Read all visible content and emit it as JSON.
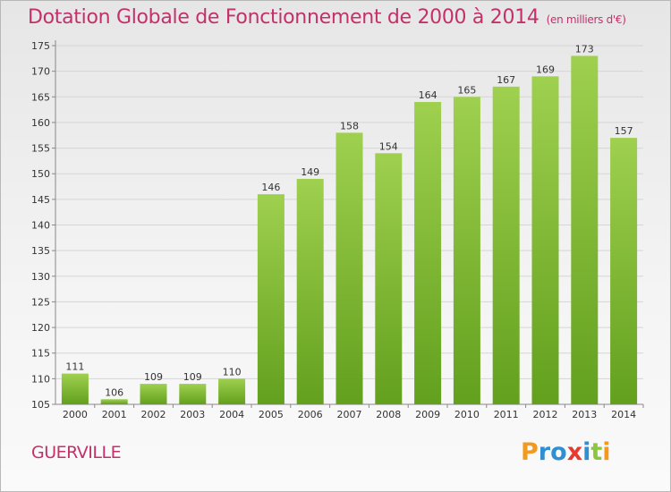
{
  "title": "Dotation Globale de Fonctionnement de 2000 à 2014",
  "subtitle": "(en milliers d'€)",
  "place": "GUERVILLE",
  "logo": {
    "letters": [
      "P",
      "r",
      "o",
      "x",
      "i",
      "t",
      "i"
    ],
    "colors": [
      "#f39a1e",
      "#2f8fd0",
      "#2f8fd0",
      "#e8392f",
      "#2f8fd0",
      "#8cc63f",
      "#f39a1e"
    ]
  },
  "colors": {
    "bar_top": "#9fd04f",
    "bar_bottom": "#62a01d",
    "accent": "#c4306a",
    "grid": "#d5d5d5"
  },
  "chart_data": {
    "type": "bar",
    "categories": [
      "2000",
      "2001",
      "2002",
      "2003",
      "2004",
      "2005",
      "2006",
      "2007",
      "2008",
      "2009",
      "2010",
      "2011",
      "2012",
      "2013",
      "2014"
    ],
    "values": [
      111,
      106,
      109,
      109,
      110,
      146,
      149,
      158,
      154,
      164,
      165,
      167,
      169,
      173,
      157
    ],
    "ylim": [
      105,
      175
    ],
    "yticks": [
      105,
      110,
      115,
      120,
      125,
      130,
      135,
      140,
      145,
      150,
      155,
      160,
      165,
      170,
      175
    ],
    "grid": true,
    "data_labels": true
  }
}
